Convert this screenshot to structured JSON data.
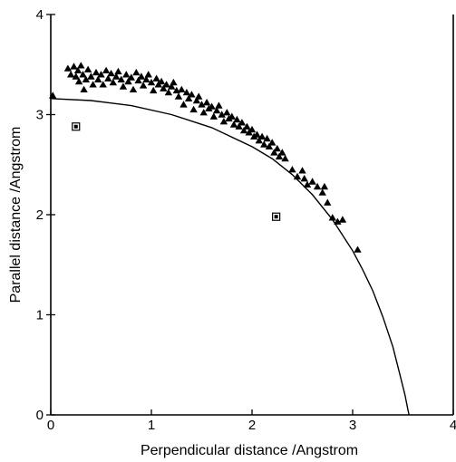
{
  "chart_data": {
    "type": "scatter",
    "title": "",
    "xlabel": "Perpendicular distance  /Angstrom",
    "ylabel": "Parallel distance  /Angstrom",
    "xlim": [
      0,
      4
    ],
    "ylim": [
      0,
      4
    ],
    "xticks": [
      0,
      1,
      2,
      3,
      4
    ],
    "yticks": [
      0,
      1,
      2,
      3,
      4
    ],
    "xtick_labels": [
      "0",
      "1",
      "2",
      "3",
      "4"
    ],
    "ytick_labels": [
      "0",
      "1",
      "2",
      "3",
      "4"
    ],
    "grid": false,
    "legend": "none",
    "series": [
      {
        "marker": "triangle",
        "points": [
          [
            0.02,
            3.19
          ],
          [
            0.17,
            3.46
          ],
          [
            0.2,
            3.4
          ],
          [
            0.23,
            3.48
          ],
          [
            0.25,
            3.38
          ],
          [
            0.27,
            3.44
          ],
          [
            0.28,
            3.33
          ],
          [
            0.3,
            3.49
          ],
          [
            0.32,
            3.4
          ],
          [
            0.33,
            3.25
          ],
          [
            0.35,
            3.35
          ],
          [
            0.37,
            3.45
          ],
          [
            0.4,
            3.38
          ],
          [
            0.42,
            3.3
          ],
          [
            0.45,
            3.42
          ],
          [
            0.47,
            3.35
          ],
          [
            0.5,
            3.4
          ],
          [
            0.52,
            3.3
          ],
          [
            0.55,
            3.44
          ],
          [
            0.57,
            3.36
          ],
          [
            0.6,
            3.41
          ],
          [
            0.62,
            3.32
          ],
          [
            0.65,
            3.38
          ],
          [
            0.67,
            3.43
          ],
          [
            0.7,
            3.35
          ],
          [
            0.72,
            3.28
          ],
          [
            0.75,
            3.4
          ],
          [
            0.77,
            3.33
          ],
          [
            0.8,
            3.37
          ],
          [
            0.82,
            3.25
          ],
          [
            0.85,
            3.42
          ],
          [
            0.87,
            3.34
          ],
          [
            0.9,
            3.38
          ],
          [
            0.92,
            3.29
          ],
          [
            0.95,
            3.35
          ],
          [
            0.97,
            3.4
          ],
          [
            1.0,
            3.32
          ],
          [
            1.02,
            3.24
          ],
          [
            1.05,
            3.36
          ],
          [
            1.07,
            3.3
          ],
          [
            1.1,
            3.33
          ],
          [
            1.12,
            3.26
          ],
          [
            1.15,
            3.3
          ],
          [
            1.17,
            3.22
          ],
          [
            1.2,
            3.28
          ],
          [
            1.22,
            3.32
          ],
          [
            1.25,
            3.24
          ],
          [
            1.27,
            3.18
          ],
          [
            1.3,
            3.25
          ],
          [
            1.32,
            3.1
          ],
          [
            1.35,
            3.22
          ],
          [
            1.37,
            3.16
          ],
          [
            1.4,
            3.2
          ],
          [
            1.42,
            3.05
          ],
          [
            1.45,
            3.14
          ],
          [
            1.47,
            3.18
          ],
          [
            1.5,
            3.1
          ],
          [
            1.52,
            3.02
          ],
          [
            1.55,
            3.12
          ],
          [
            1.57,
            3.06
          ],
          [
            1.6,
            3.08
          ],
          [
            1.62,
            2.98
          ],
          [
            1.65,
            3.04
          ],
          [
            1.67,
            3.09
          ],
          [
            1.7,
            3.0
          ],
          [
            1.72,
            2.93
          ],
          [
            1.75,
            3.02
          ],
          [
            1.77,
            2.96
          ],
          [
            1.8,
            2.98
          ],
          [
            1.82,
            2.9
          ],
          [
            1.85,
            2.95
          ],
          [
            1.87,
            2.88
          ],
          [
            1.9,
            2.92
          ],
          [
            1.92,
            2.84
          ],
          [
            1.95,
            2.88
          ],
          [
            1.97,
            2.82
          ],
          [
            2.0,
            2.85
          ],
          [
            2.02,
            2.78
          ],
          [
            2.05,
            2.8
          ],
          [
            2.07,
            2.74
          ],
          [
            2.1,
            2.78
          ],
          [
            2.12,
            2.7
          ],
          [
            2.15,
            2.76
          ],
          [
            2.17,
            2.68
          ],
          [
            2.2,
            2.72
          ],
          [
            2.22,
            2.62
          ],
          [
            2.25,
            2.66
          ],
          [
            2.27,
            2.58
          ],
          [
            2.3,
            2.62
          ],
          [
            2.33,
            2.56
          ],
          [
            2.4,
            2.45
          ],
          [
            2.45,
            2.38
          ],
          [
            2.5,
            2.44
          ],
          [
            2.52,
            2.36
          ],
          [
            2.55,
            2.3
          ],
          [
            2.6,
            2.33
          ],
          [
            2.65,
            2.28
          ],
          [
            2.7,
            2.22
          ],
          [
            2.72,
            2.28
          ],
          [
            2.75,
            2.12
          ],
          [
            2.8,
            1.97
          ],
          [
            2.85,
            1.93
          ],
          [
            2.9,
            1.95
          ],
          [
            3.05,
            1.65
          ]
        ]
      },
      {
        "marker": "square",
        "points": [
          [
            0.25,
            2.88
          ],
          [
            2.24,
            1.98
          ]
        ]
      }
    ],
    "curve": {
      "style": "solid-line",
      "points": [
        [
          0.0,
          3.16
        ],
        [
          0.4,
          3.14
        ],
        [
          0.8,
          3.09
        ],
        [
          1.2,
          3.0
        ],
        [
          1.6,
          2.87
        ],
        [
          2.0,
          2.68
        ],
        [
          2.2,
          2.56
        ],
        [
          2.4,
          2.4
        ],
        [
          2.6,
          2.2
        ],
        [
          2.8,
          1.95
        ],
        [
          3.0,
          1.64
        ],
        [
          3.1,
          1.45
        ],
        [
          3.2,
          1.24
        ],
        [
          3.3,
          0.98
        ],
        [
          3.4,
          0.68
        ],
        [
          3.47,
          0.4
        ],
        [
          3.52,
          0.2
        ],
        [
          3.55,
          0.05
        ],
        [
          3.56,
          0.0
        ]
      ]
    }
  }
}
